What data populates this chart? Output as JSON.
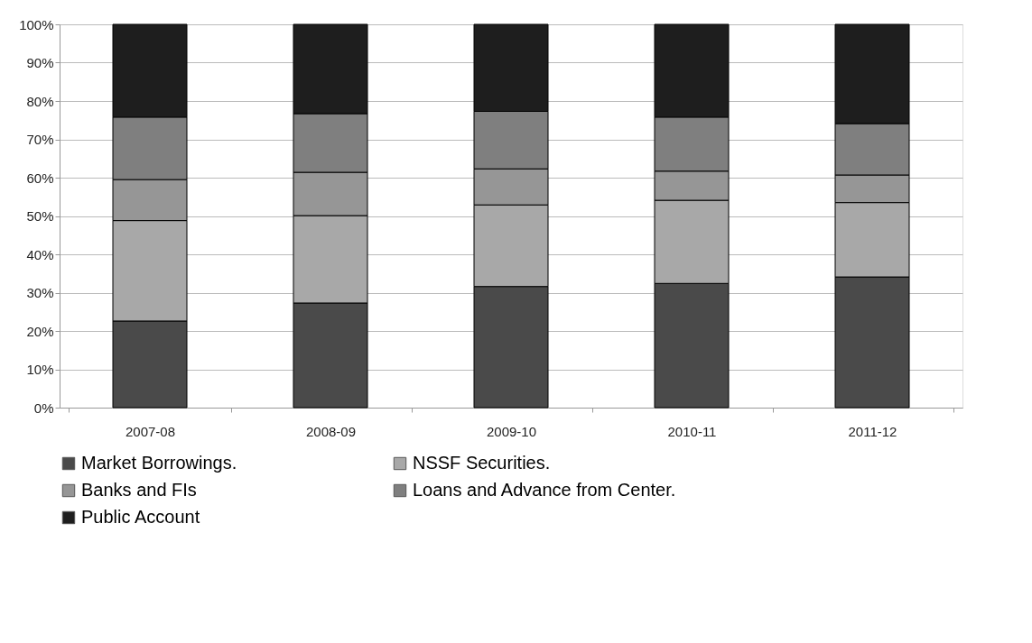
{
  "chart_data": {
    "type": "bar",
    "stacked": true,
    "categories": [
      "2007-08",
      "2008-09",
      "2009-10",
      "2010-11",
      "2011-12"
    ],
    "series": [
      {
        "name": "Market Borrowings.",
        "color": "#4a4a4a",
        "values": [
          22.6,
          27.3,
          31.6,
          32.4,
          34.1
        ]
      },
      {
        "name": "NSSF Securities.",
        "color": "#a8a8a8",
        "values": [
          26.2,
          22.8,
          21.3,
          21.7,
          19.4
        ]
      },
      {
        "name": "Banks and FIs",
        "color": "#969696",
        "values": [
          10.7,
          11.3,
          9.4,
          7.6,
          7.2
        ]
      },
      {
        "name": "Loans and Advance from Center.",
        "color": "#7f7f7f",
        "values": [
          16.3,
          15.3,
          15.0,
          14.1,
          13.4
        ]
      },
      {
        "name": "Public Account",
        "color": "#1e1e1e",
        "values": [
          24.2,
          23.3,
          22.7,
          24.2,
          25.9
        ]
      }
    ],
    "ylim": [
      0,
      100
    ],
    "yticks": [
      {
        "value": 0,
        "label": "0%"
      },
      {
        "value": 10,
        "label": "10%"
      },
      {
        "value": 20,
        "label": "20%"
      },
      {
        "value": 30,
        "label": "30%"
      },
      {
        "value": 40,
        "label": "40%"
      },
      {
        "value": 50,
        "label": "50%"
      },
      {
        "value": 60,
        "label": "60%"
      },
      {
        "value": 70,
        "label": "70%"
      },
      {
        "value": 80,
        "label": "80%"
      },
      {
        "value": 90,
        "label": "90%"
      },
      {
        "value": 100,
        "label": "100%"
      }
    ],
    "grid": "y",
    "legend": "bottom"
  }
}
